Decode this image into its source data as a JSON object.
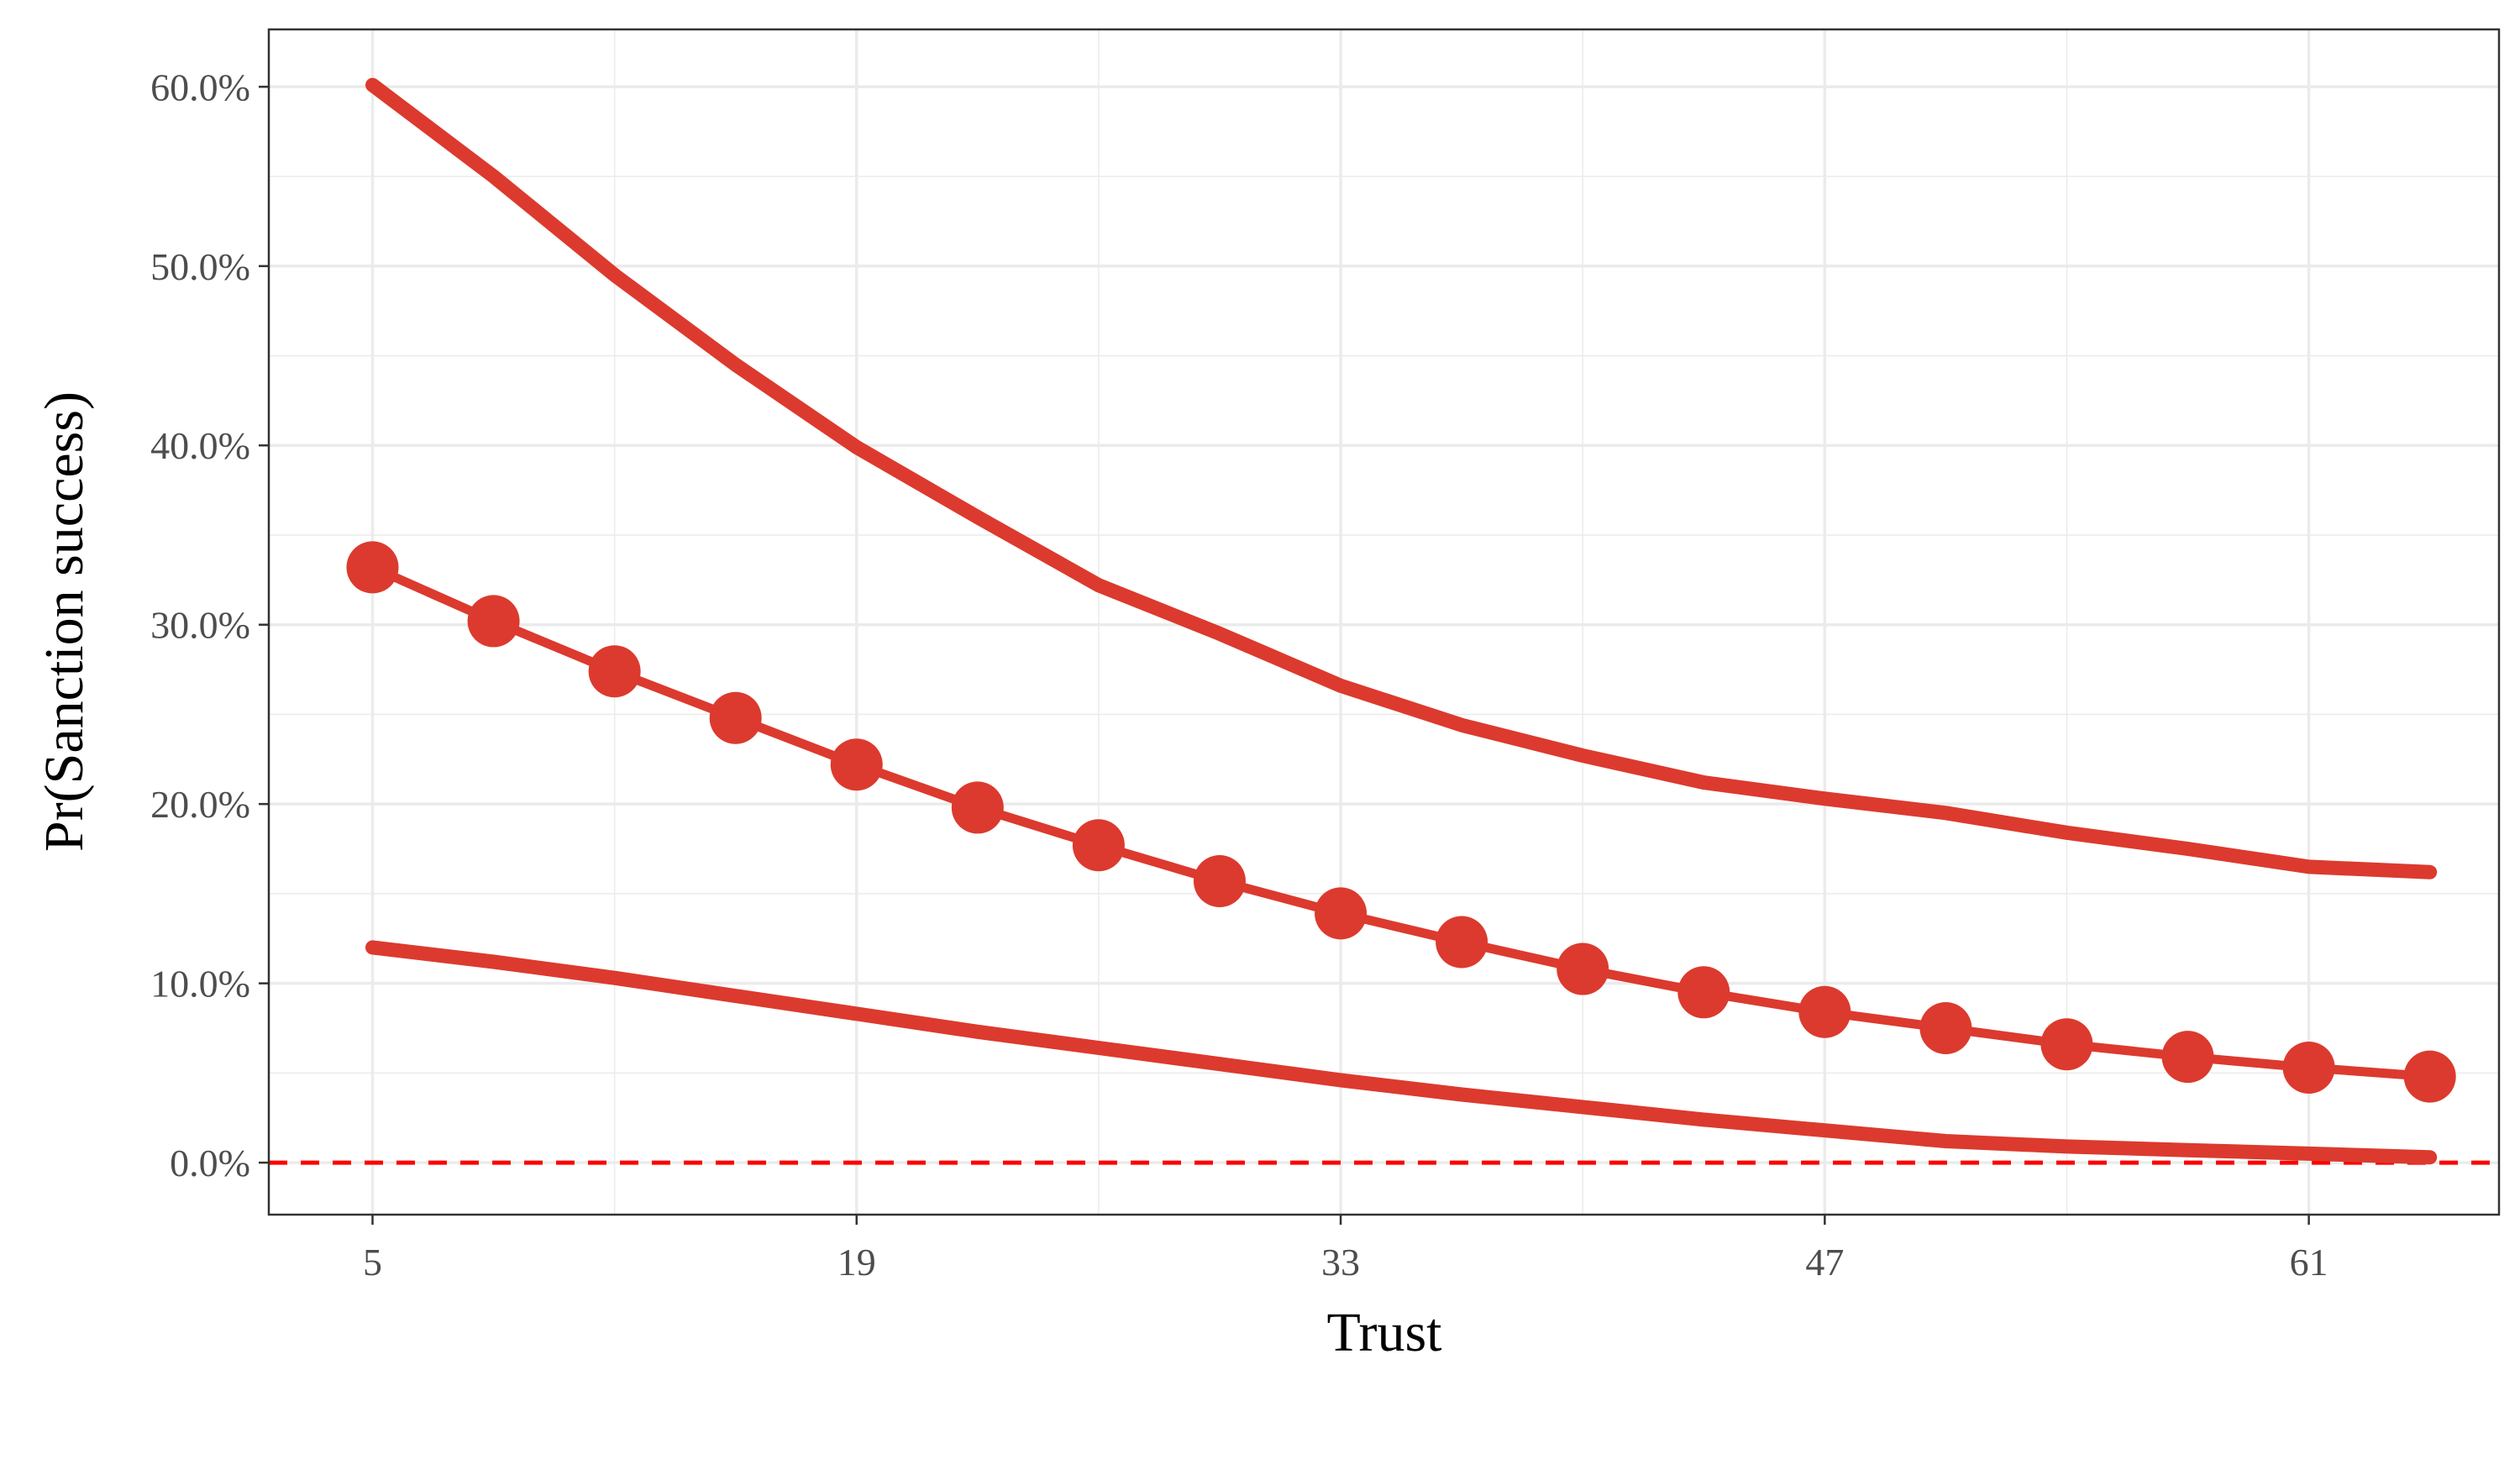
{
  "chart_data": {
    "type": "line",
    "xlabel": "Trust",
    "ylabel": "Pr(Sanction success)",
    "x_ticks": [
      "5",
      "19",
      "33",
      "47",
      "61"
    ],
    "y_ticks": [
      "0.0%",
      "10.0%",
      "20.0%",
      "30.0%",
      "40.0%",
      "50.0%",
      "60.0%"
    ],
    "xlim": [
      2,
      66.5
    ],
    "ylim": [
      -0.029,
      0.632
    ],
    "grid": true,
    "legend": "none",
    "x": [
      5,
      8.5,
      12,
      15.5,
      19,
      22.5,
      26,
      29.5,
      33,
      36.5,
      40,
      43.5,
      47,
      50.5,
      54,
      57.5,
      61,
      64.5
    ],
    "series": [
      {
        "role": "estimate",
        "markers": true,
        "values": [
          0.332,
          0.302,
          0.274,
          0.248,
          0.222,
          0.198,
          0.177,
          0.157,
          0.139,
          0.123,
          0.108,
          0.095,
          0.084,
          0.075,
          0.066,
          0.059,
          0.053,
          0.048
        ]
      },
      {
        "role": "upper",
        "markers": false,
        "values": [
          0.601,
          0.55,
          0.495,
          0.445,
          0.399,
          0.36,
          0.322,
          0.295,
          0.266,
          0.244,
          0.227,
          0.212,
          0.203,
          0.195,
          0.184,
          0.175,
          0.165,
          0.162
        ]
      },
      {
        "role": "lower",
        "markers": false,
        "values": [
          0.12,
          0.112,
          0.103,
          0.093,
          0.083,
          0.073,
          0.064,
          0.055,
          0.046,
          0.038,
          0.031,
          0.024,
          0.018,
          0.012,
          0.009,
          0.007,
          0.005,
          0.003
        ]
      }
    ],
    "reference_line": {
      "y": 0,
      "style": "dashed",
      "color": "#ff0000"
    },
    "colors": {
      "series": "#dc3a2e",
      "reference": "#ff0000",
      "grid": "#ebebeb",
      "panel_border": "#333333"
    }
  }
}
